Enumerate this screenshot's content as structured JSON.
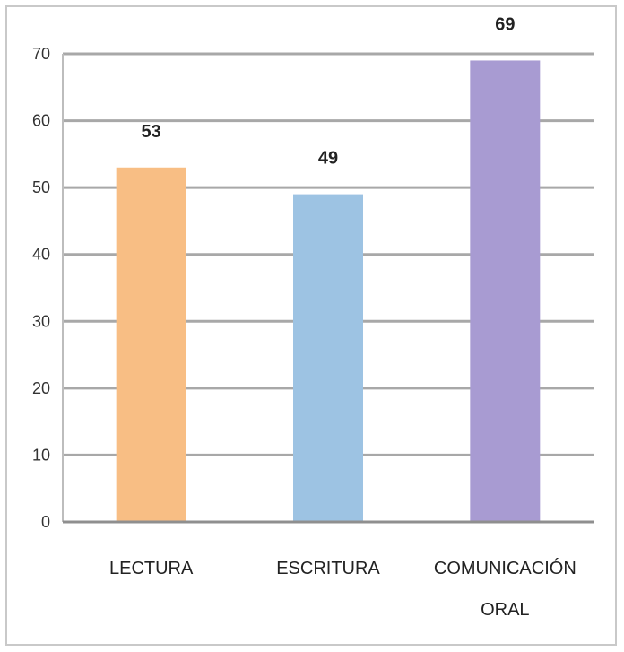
{
  "chart_data": {
    "type": "bar",
    "title": "",
    "xlabel": "",
    "ylabel": "",
    "ylim": [
      0,
      70
    ],
    "yticks": [
      0,
      10,
      20,
      30,
      40,
      50,
      60,
      70
    ],
    "categories": [
      {
        "label_lines": [
          "LECTURA"
        ]
      },
      {
        "label_lines": [
          "ESCRITURA"
        ]
      },
      {
        "label_lines": [
          "COMUNICACIÓN",
          "ORAL"
        ]
      }
    ],
    "values": [
      53,
      49,
      69
    ],
    "value_labels": [
      "53",
      "49",
      "69"
    ],
    "colors": [
      "#f8be84",
      "#9dc3e3",
      "#a89bd2"
    ],
    "grid": true,
    "legend": "none"
  }
}
